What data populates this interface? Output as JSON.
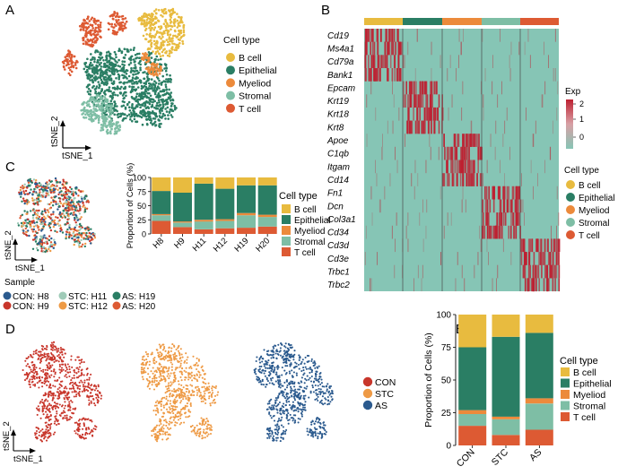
{
  "colors": {
    "bcell": "#E8BB3F",
    "epithelial": "#2A7E64",
    "myeloid": "#EC8A3B",
    "stromal": "#7EBEA5",
    "tcell": "#DD5A33",
    "con": "#C8362B",
    "stc": "#EE9A45",
    "as": "#2B5A8E",
    "heat_low": "#86C5B5",
    "heat_high": "#BE2031"
  },
  "panel_a": {
    "letter": "A",
    "legend_title": "Cell type",
    "legend": [
      "B cell",
      "Epithelial",
      "Myeliod",
      "Stromal",
      "T cell"
    ],
    "axis_y": "tSNE_2",
    "axis_x": "tSNE_1"
  },
  "panel_b": {
    "letter": "B",
    "genes": [
      "Cd19",
      "Ms4a1",
      "Cd79a",
      "Bank1",
      "Epcam",
      "Krt19",
      "Krt18",
      "Krt8",
      "Apoe",
      "C1qb",
      "Itgam",
      "Cd14",
      "Fn1",
      "Dcn",
      "Col3a1",
      "Cd34",
      "Cd3d",
      "Cd3e",
      "Trbc1",
      "Trbc2"
    ],
    "exp_title": "Exp",
    "exp_ticks": [
      "2",
      "1",
      "0"
    ],
    "legend_title": "Cell type",
    "legend": [
      "B cell",
      "Epithelial",
      "Myeliod",
      "Stromal",
      "T cell"
    ]
  },
  "panel_c": {
    "letter": "C",
    "axis_y": "tSNE_2",
    "axis_x": "tSNE_1",
    "sample_title": "Sample",
    "samples": [
      {
        "label": "CON: H8",
        "color": "#2B5A8E"
      },
      {
        "label": "CON: H9",
        "color": "#C8362B"
      },
      {
        "label": "STC: H11",
        "color": "#9FCBB8"
      },
      {
        "label": "STC: H12",
        "color": "#EE9A45"
      },
      {
        "label": "AS: H19",
        "color": "#2A7E64"
      },
      {
        "label": "AS: H20",
        "color": "#DD5A33"
      }
    ],
    "legend_title": "Cell type",
    "legend": [
      "B cell",
      "Epithelial",
      "Myeliod",
      "Stromal",
      "T cell"
    ]
  },
  "panel_d": {
    "letter": "D",
    "axis_y": "tSNE_2",
    "axis_x": "tSNE_1",
    "legend": [
      "CON",
      "STC",
      "AS"
    ]
  },
  "panel_e": {
    "letter": "E",
    "legend_title": "Cell type",
    "legend": [
      "B cell",
      "Epithelial",
      "Myeliod",
      "Stromal",
      "T cell"
    ]
  },
  "chart_data": [
    {
      "id": "C",
      "type": "bar",
      "stacked": true,
      "categories": [
        "H8",
        "H9",
        "H11",
        "H12",
        "H19",
        "H20"
      ],
      "ylabel": "Proportion of Cells (%)",
      "ylim": [
        0,
        100
      ],
      "yticks": [
        "0",
        "25",
        "50",
        "75",
        "100"
      ],
      "series": [
        {
          "name": "T cell",
          "values": [
            23,
            12,
            8,
            10,
            11,
            13
          ]
        },
        {
          "name": "Stromal",
          "values": [
            10,
            8,
            14,
            13,
            22,
            17
          ]
        },
        {
          "name": "Myeliod",
          "values": [
            2,
            2,
            3,
            3,
            4,
            4
          ]
        },
        {
          "name": "Epithelial",
          "values": [
            41,
            51,
            64,
            54,
            49,
            52
          ]
        },
        {
          "name": "B cell",
          "values": [
            24,
            27,
            11,
            20,
            14,
            14
          ]
        }
      ]
    },
    {
      "id": "E",
      "type": "bar",
      "stacked": true,
      "categories": [
        "CON",
        "STC",
        "AS"
      ],
      "ylabel": "Proportion of Cells (%)",
      "ylim": [
        0,
        100
      ],
      "yticks": [
        "0",
        "25",
        "50",
        "75",
        "100"
      ],
      "series": [
        {
          "name": "T cell",
          "values": [
            15,
            8,
            12
          ]
        },
        {
          "name": "Stromal",
          "values": [
            9,
            12,
            20
          ]
        },
        {
          "name": "Myeliod",
          "values": [
            3,
            2,
            4
          ]
        },
        {
          "name": "Epithelial",
          "values": [
            48,
            61,
            50
          ]
        },
        {
          "name": "B cell",
          "values": [
            25,
            17,
            14
          ]
        }
      ]
    }
  ]
}
